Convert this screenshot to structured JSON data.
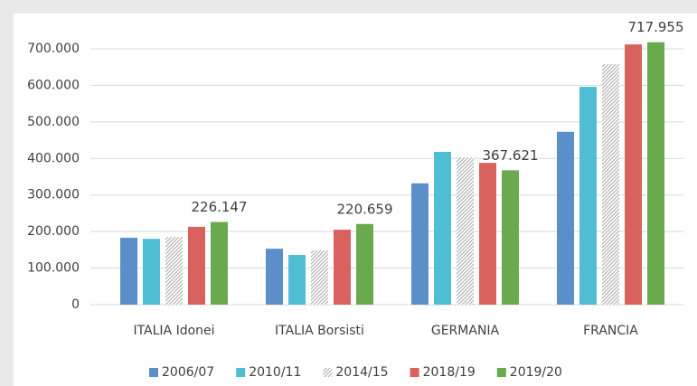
{
  "chart_data": {
    "type": "bar",
    "categories": [
      "ITALIA Idonei",
      "ITALIA Borsisti",
      "GERMANIA",
      "FRANCIA"
    ],
    "series": [
      {
        "name": "2006/07",
        "color": "#5b8fc9",
        "values": [
          183000,
          153000,
          332000,
          473000
        ]
      },
      {
        "name": "2010/11",
        "color": "#4fbdd4",
        "values": [
          180000,
          136000,
          418000,
          596000
        ]
      },
      {
        "name": "2014/15",
        "color": "#c4c4c4",
        "hatch": true,
        "values": [
          185000,
          148000,
          403000,
          658000
        ]
      },
      {
        "name": "2018/19",
        "color": "#d9625e",
        "values": [
          213000,
          205000,
          388000,
          712000
        ]
      },
      {
        "name": "2019/20",
        "color": "#6aaa4e",
        "values": [
          226147,
          220659,
          367621,
          717955
        ],
        "value_labels": [
          "226.147",
          "220.659",
          "367.621",
          "717.955"
        ]
      }
    ],
    "ylim": [
      0,
      700000
    ],
    "yticks": [
      0,
      {
        "value": 100000,
        "label": "100.000"
      },
      {
        "value": 200000,
        "label": "200.000"
      },
      {
        "value": 300000,
        "label": "300.000"
      },
      {
        "value": 400000,
        "label": "400.000"
      },
      {
        "value": 500000,
        "label": "500.000"
      },
      {
        "value": 600000,
        "label": "600.000"
      },
      {
        "value": 700000,
        "label": "700.000"
      }
    ],
    "grid": true,
    "legend": "bottom"
  }
}
